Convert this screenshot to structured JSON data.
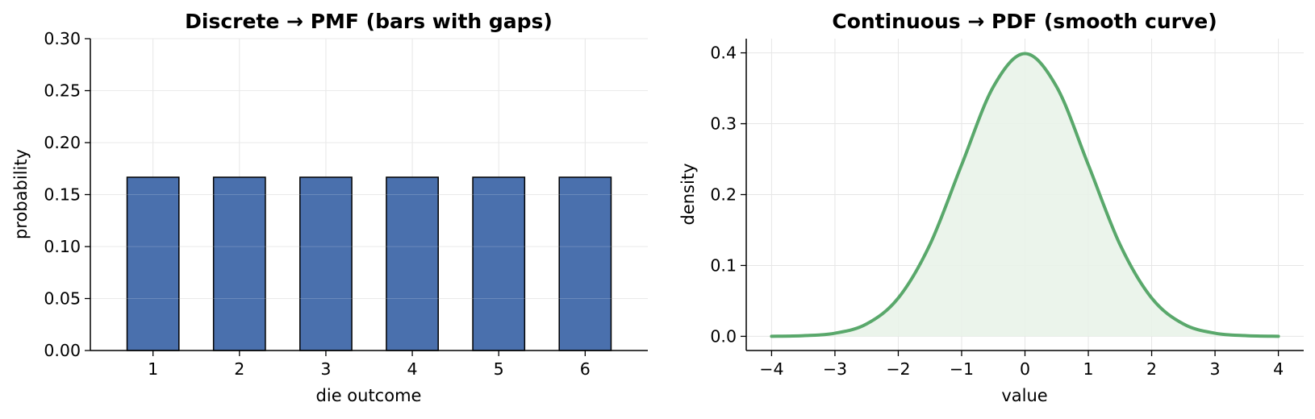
{
  "chart_data": [
    {
      "type": "bar",
      "title": "Discrete → PMF (bars with gaps)",
      "xlabel": "die outcome",
      "ylabel": "probability",
      "categories": [
        "1",
        "2",
        "3",
        "4",
        "5",
        "6"
      ],
      "values": [
        0.1667,
        0.1667,
        0.1667,
        0.1667,
        0.1667,
        0.1667
      ],
      "ylim": [
        0,
        0.3
      ],
      "yticks": [
        "0.00",
        "0.05",
        "0.10",
        "0.15",
        "0.20",
        "0.25",
        "0.30"
      ],
      "grid": true,
      "bar_color": "#4a70ad",
      "edge_color": "#000000"
    },
    {
      "type": "area",
      "title": "Continuous → PDF (smooth curve)",
      "xlabel": "value",
      "ylabel": "density",
      "distribution": "standard normal",
      "x": [
        -4,
        -3.5,
        -3,
        -2.5,
        -2,
        -1.5,
        -1,
        -0.5,
        0,
        0.5,
        1,
        1.5,
        2,
        2.5,
        3,
        3.5,
        4
      ],
      "y": [
        0.0001,
        0.0009,
        0.0044,
        0.0175,
        0.054,
        0.1295,
        0.242,
        0.3521,
        0.3989,
        0.3521,
        0.242,
        0.1295,
        0.054,
        0.0175,
        0.0044,
        0.0009,
        0.0001
      ],
      "xlim": [
        -4.4,
        4.4
      ],
      "ylim": [
        -0.02,
        0.42
      ],
      "xticks": [
        "−4",
        "−3",
        "−2",
        "−1",
        "0",
        "1",
        "2",
        "3",
        "4"
      ],
      "yticks": [
        "0.0",
        "0.1",
        "0.2",
        "0.3",
        "0.4"
      ],
      "grid": true,
      "line_color": "#59a86b",
      "fill_color": "#e7f2e8"
    }
  ]
}
